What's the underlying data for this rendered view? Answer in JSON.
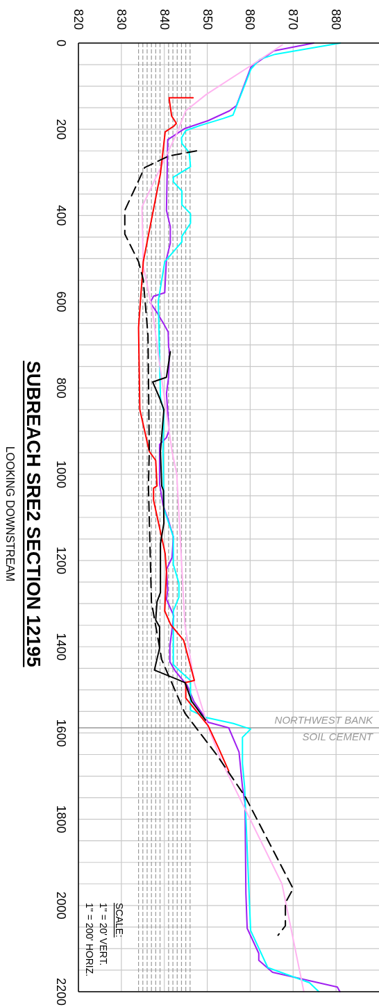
{
  "chart_data": {
    "type": "line",
    "title": "SUBREACH SRE2 SECTION 12195",
    "subtitle": "LOOKING DOWNSTREAM",
    "annotations": [
      "SCALE:",
      "1\" = 20' VERT.",
      "1\" = 200' HORIZ."
    ],
    "xlim": [
      820,
      890
    ],
    "ylim": [
      2200,
      0
    ],
    "xticks": [
      820,
      830,
      {
        "value": 834,
        "label": null
      },
      {
        "value": 835,
        "label": null
      },
      {
        "value": 836,
        "label": null
      },
      {
        "value": 837,
        "label": null
      },
      {
        "value": 838,
        "label": null
      },
      {
        "value": 839,
        "label": null
      },
      840,
      {
        "value": 841,
        "label": null
      },
      {
        "value": 842,
        "label": null
      },
      {
        "value": 843,
        "label": null
      },
      {
        "value": 844,
        "label": null
      },
      {
        "value": 845,
        "label": null
      },
      {
        "value": 846,
        "label": null
      },
      850,
      860,
      870,
      880
    ],
    "yticks": [
      0,
      {
        "value": 50,
        "label": null
      },
      {
        "value": 100,
        "label": null
      },
      {
        "value": 150,
        "label": null
      },
      200,
      {
        "value": 250,
        "label": null
      },
      {
        "value": 300,
        "label": null
      },
      {
        "value": 350,
        "label": null
      },
      400,
      {
        "value": 450,
        "label": null
      },
      {
        "value": 500,
        "label": null
      },
      {
        "value": 550,
        "label": null
      },
      600,
      {
        "value": 650,
        "label": null
      },
      {
        "value": 700,
        "label": null
      },
      {
        "value": 750,
        "label": null
      },
      800,
      {
        "value": 850,
        "label": null
      },
      {
        "value": 900,
        "label": null
      },
      {
        "value": 950,
        "label": null
      },
      1000,
      {
        "value": 1050,
        "label": null
      },
      {
        "value": 1100,
        "label": null
      },
      {
        "value": 1150,
        "label": null
      },
      1200,
      {
        "value": 1250,
        "label": null
      },
      {
        "value": 1300,
        "label": null
      },
      {
        "value": 1350,
        "label": null
      },
      1400,
      {
        "value": 1450,
        "label": null
      },
      {
        "value": 1500,
        "label": null
      },
      {
        "value": 1550,
        "label": null
      },
      1600,
      {
        "value": 1650,
        "label": null
      },
      {
        "value": 1700,
        "label": null
      },
      {
        "value": 1750,
        "label": null
      },
      1800,
      {
        "value": 1850,
        "label": null
      },
      {
        "value": 1900,
        "label": null
      },
      {
        "value": 1950,
        "label": null
      },
      2000,
      {
        "value": 2050,
        "label": null
      },
      {
        "value": 2100,
        "label": null
      },
      {
        "value": 2150,
        "label": null
      },
      2200
    ],
    "grid": true,
    "ref_lines": [
      {
        "axis": "y",
        "value": 1588,
        "label": "NORTHWEST BANK\nSOIL CEMENT",
        "color": "#999999"
      }
    ],
    "series": [
      {
        "color": "#a020f0",
        "values": [
          0,
          18,
          55,
          145,
          157,
          180,
          198,
          224,
          388,
          426,
          464,
          501,
          579,
          587,
          602,
          625,
          652,
          670,
          705,
          713,
          775,
          813,
          898,
          915,
          931,
          1022,
          1071,
          1108,
          1145,
          1193,
          1221,
          1269,
          1290,
          1328,
          1398,
          1435,
          1457,
          1489,
          1527,
          1575,
          1588,
          1644,
          1725,
          1763,
          1972,
          2053,
          2111,
          2127,
          2155,
          2189,
          2200
        ],
        "x": [
          874.8,
          865.5,
          860.2,
          856.8,
          855.2,
          850.2,
          844.8,
          840.8,
          840.5,
          841.4,
          841.4,
          840.5,
          840.1,
          837.5,
          836.7,
          838.3,
          839.9,
          840.9,
          841.0,
          841.2,
          841.0,
          840.5,
          841.1,
          840.5,
          838.9,
          838.9,
          839.7,
          841.0,
          842.1,
          841.8,
          840.5,
          840.8,
          840.5,
          842.2,
          841.3,
          841.3,
          842.6,
          845.3,
          846.9,
          850.2,
          855.0,
          857.4,
          858.2,
          858.8,
          859.0,
          859.3,
          862.0,
          862.0,
          865.2,
          880.3,
          880.9
        ]
      },
      {
        "color": "#00ffff",
        "values": [
          0,
          26,
          38,
          60,
          167,
          175,
          191,
          203,
          220,
          233,
          254,
          287,
          311,
          322,
          343,
          375,
          396,
          418,
          448,
          461,
          507,
          598,
          823,
          855,
          947,
          1080,
          1145,
          1209,
          1253,
          1285,
          1317,
          1441,
          1457,
          1478,
          1547,
          1564,
          1578,
          1591,
          1610,
          1671,
          1725,
          2058,
          2144,
          2179,
          2200
        ],
        "x": [
          881.0,
          865.8,
          862.2,
          860.2,
          856.0,
          853.7,
          848.4,
          845.0,
          844.0,
          844.1,
          845.8,
          846.1,
          842.1,
          842.1,
          844.1,
          844.1,
          846.1,
          846.1,
          844.1,
          844.1,
          840.1,
          838.6,
          839.1,
          839.9,
          839.7,
          839.9,
          842.1,
          842.1,
          843.4,
          843.4,
          842.1,
          842.1,
          843.7,
          846.1,
          846.1,
          849.6,
          856.1,
          860.1,
          858.2,
          858.2,
          858.7,
          860.1,
          864.1,
          873.8,
          876.0
        ]
      },
      {
        "color": "#ffb3f0",
        "values": [
          4,
          52,
          119,
          157,
          214,
          380,
          517,
          625,
          758,
          947,
          1000,
          1349,
          1483,
          1586,
          1667,
          1950,
          2200
        ],
        "x": [
          867.5,
          860.2,
          849.8,
          845.0,
          842.7,
          834.8,
          835.1,
          837.3,
          839.1,
          841.8,
          842.9,
          844.8,
          847.0,
          850.2,
          853.4,
          867.4,
          872.5
        ]
      },
      {
        "color": "#ff0000",
        "values": [
          127,
          127,
          169,
          186,
          192,
          206,
          303,
          507,
          660,
          850,
          947,
          968,
          1027,
          1032,
          1060,
          1184,
          1226,
          1317,
          1349,
          1385,
          1478,
          1483,
          1519,
          1583,
          1634,
          1688
        ],
        "x": [
          846.7,
          841.1,
          841.7,
          842.8,
          842.3,
          840.2,
          839.1,
          835.1,
          834.0,
          834.3,
          836.5,
          838.0,
          838.3,
          837.5,
          837.5,
          840.2,
          840.5,
          840.1,
          841.5,
          844.5,
          847.0,
          845.0,
          845.0,
          850.2,
          852.6,
          855.0
        ]
      },
      {
        "color": "#000000",
        "line_style": "dashed",
        "values": [
          250,
          262,
          289,
          388,
          443,
          507,
          549,
          678,
          947,
          1027,
          1296,
          1430,
          1554,
          1652,
          1747,
          1961,
          1994,
          2047,
          2069
        ],
        "x": [
          847.5,
          841.0,
          835.4,
          830.8,
          830.8,
          834.0,
          835.1,
          836.2,
          836.5,
          836.3,
          837.0,
          839.4,
          844.8,
          852.3,
          858.8,
          870.0,
          868.2,
          868.2,
          866.5
        ]
      },
      {
        "color": "#000000",
        "values": [
          716,
          775,
          786,
          823,
          850,
          947,
          1027,
          1038,
          1113,
          1161,
          1274,
          1296,
          1338,
          1354,
          1403,
          1454,
          1483,
          1527,
          1570
        ],
        "x": [
          841.4,
          840.5,
          837.3,
          838.9,
          839.9,
          839.1,
          839.4,
          839.8,
          839.9,
          839.1,
          839.1,
          838.3,
          838.0,
          838.9,
          838.9,
          837.7,
          844.8,
          846.4,
          849.6
        ]
      }
    ]
  }
}
